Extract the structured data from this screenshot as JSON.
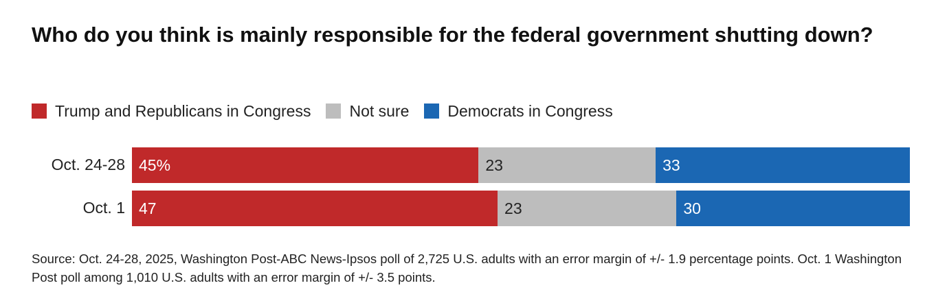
{
  "title": "Who do you think is mainly responsible for the federal government shutting down?",
  "legend": [
    {
      "label": "Trump and Republicans in Congress",
      "color": "#c0292a"
    },
    {
      "label": "Not sure",
      "color": "#bdbdbd"
    },
    {
      "label": "Democrats in Congress",
      "color": "#1b67b3"
    }
  ],
  "chart_data": {
    "type": "bar",
    "orientation": "horizontal-stacked-100",
    "title": "Who do you think is mainly responsible for the federal government shutting down?",
    "categories": [
      "Oct. 24-28",
      "Oct. 1"
    ],
    "series": [
      {
        "name": "Trump and Republicans in Congress",
        "color": "#c0292a",
        "values": [
          45,
          47
        ],
        "labels": [
          "45%",
          "47"
        ]
      },
      {
        "name": "Not sure",
        "color": "#bdbdbd",
        "values": [
          23,
          23
        ],
        "labels": [
          "23",
          "23"
        ]
      },
      {
        "name": "Democrats in Congress",
        "color": "#1b67b3",
        "values": [
          33,
          30
        ],
        "labels": [
          "33",
          "30"
        ]
      }
    ],
    "xlabel": "",
    "ylabel": ""
  },
  "source": "Source: Oct. 24-28, 2025, Washington Post-ABC News-Ipsos poll of 2,725 U.S. adults with an error margin of +/- 1.9 percentage points. Oct. 1 Washington Post poll among 1,010 U.S. adults with an error margin of +/- 3.5 points."
}
